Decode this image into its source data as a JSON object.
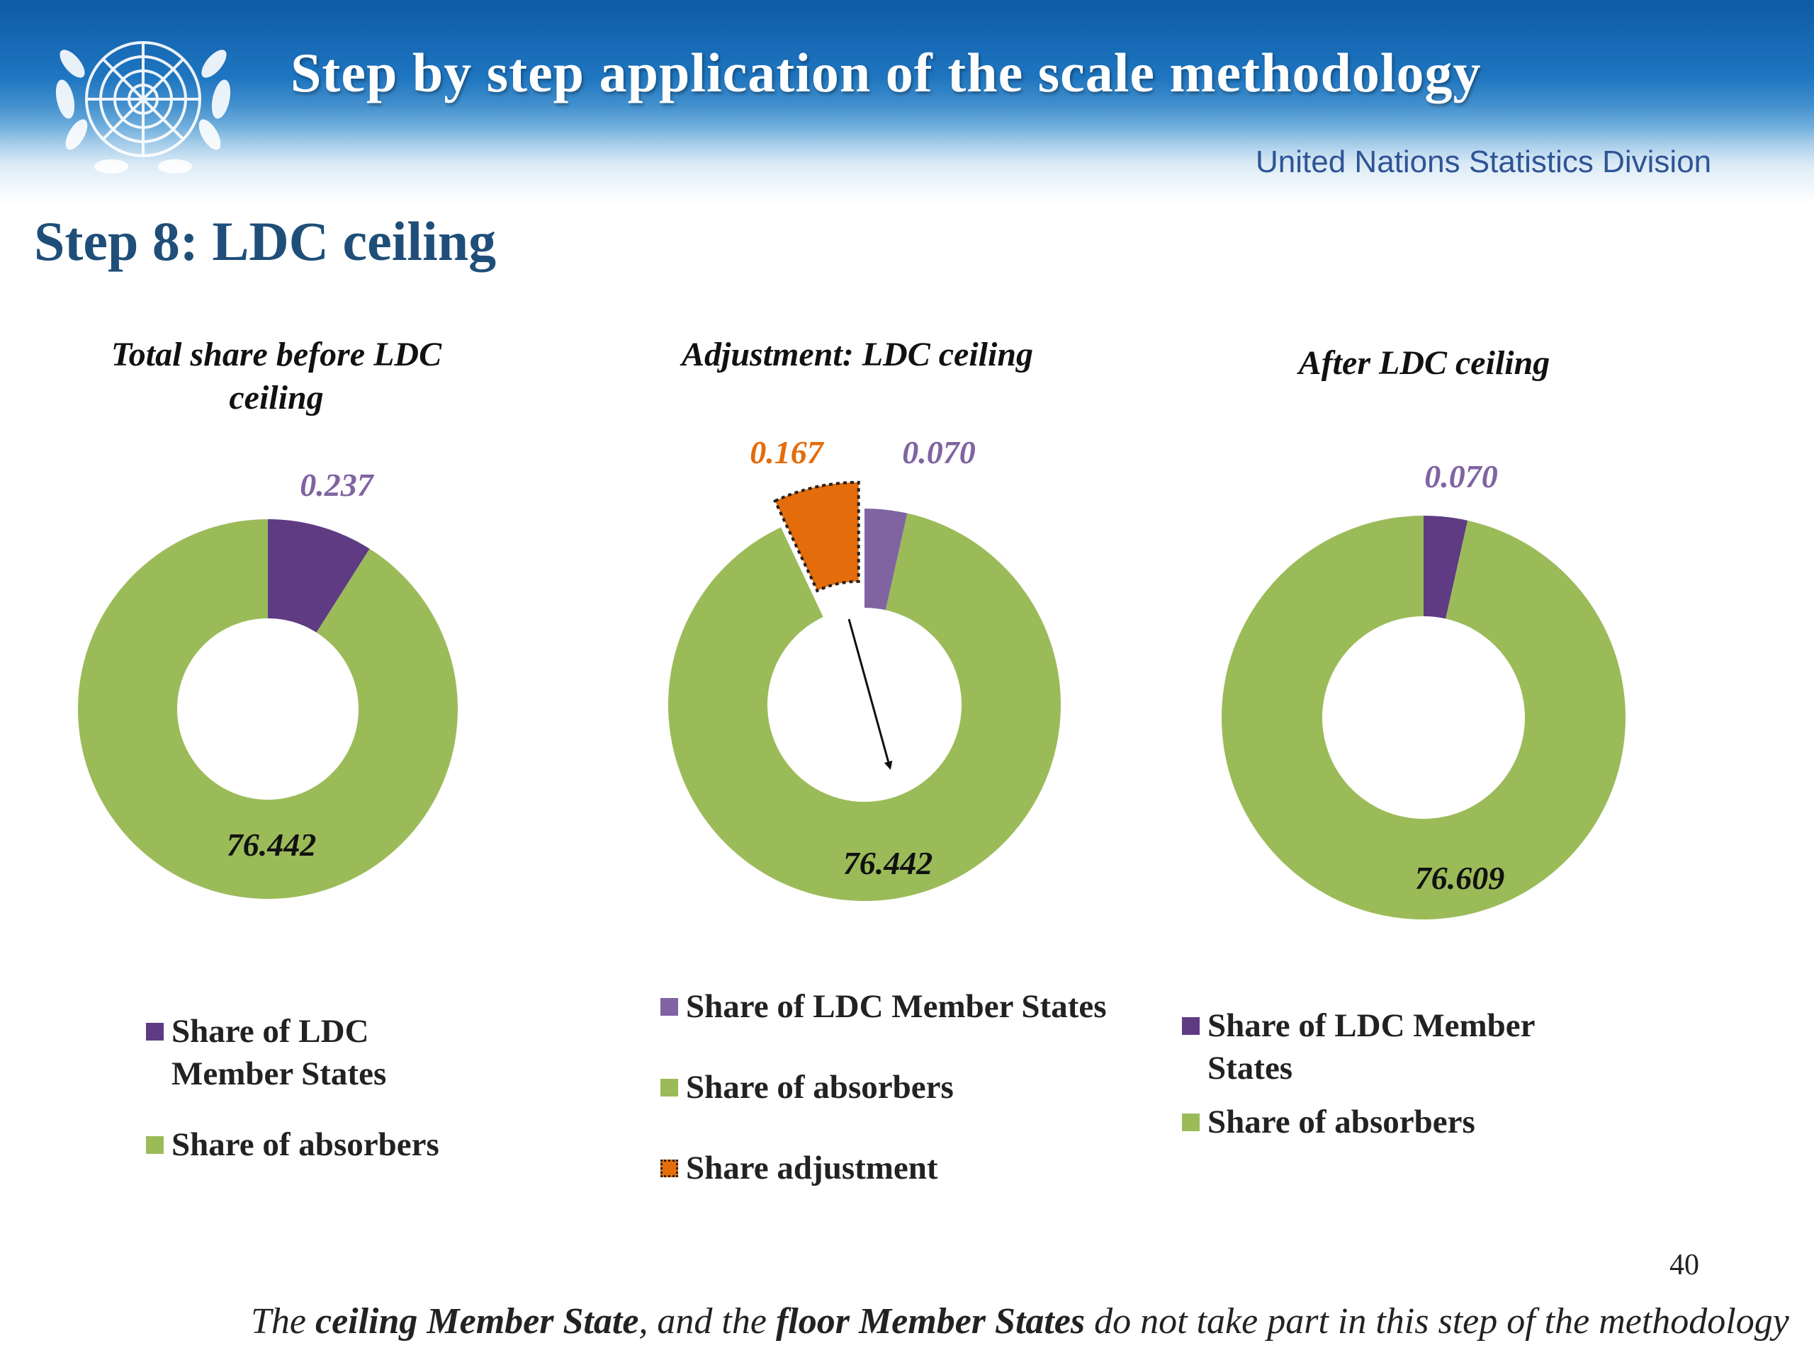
{
  "banner": {
    "title": "Step by step application of the scale methodology",
    "organization": "United Nations Statistics Division",
    "logo_icon": "un-emblem-icon"
  },
  "slide": {
    "heading": "Step 8: LDC ceiling",
    "page_number": "40",
    "footnote": {
      "part1": "The ",
      "part2": "ceiling Member State",
      "part3": ", and the ",
      "part4": "floor Member States",
      "part5": " do not take part in this step of  the methodology"
    }
  },
  "chart_data": [
    {
      "type": "donut",
      "title": "Total share before LDC ceiling",
      "title_lines": [
        "Total share before LDC",
        "ceiling"
      ],
      "series": [
        {
          "name": "Share of LDC Member States",
          "value": 0.237,
          "label": "0.237",
          "color": "#5f3b84",
          "legend_lines": [
            "Share of LDC",
            "Member States"
          ]
        },
        {
          "name": "Share of absorbers",
          "value": 76.442,
          "label": "76.442",
          "color": "#9bbb59",
          "legend_lines": [
            "Share of absorbers"
          ]
        }
      ]
    },
    {
      "type": "donut",
      "title": "Adjustment: LDC ceiling",
      "title_lines": [
        "Adjustment: LDC ceiling"
      ],
      "series": [
        {
          "name": "Share of LDC Member States",
          "value": 0.07,
          "label": "0.070",
          "color": "#8064a2",
          "legend_lines": [
            "Share of LDC Member States"
          ]
        },
        {
          "name": "Share of absorbers",
          "value": 76.442,
          "label": "76.442",
          "color": "#9bbb59",
          "legend_lines": [
            "Share of absorbers"
          ]
        },
        {
          "name": "Share adjustment",
          "value": 0.167,
          "label": "0.167",
          "color": "#e46c0a",
          "legend_lines": [
            "Share adjustment"
          ]
        }
      ]
    },
    {
      "type": "donut",
      "title": "After LDC ceiling",
      "title_lines": [
        "After LDC ceiling"
      ],
      "series": [
        {
          "name": "Share of LDC Member States",
          "value": 0.07,
          "label": "0.070",
          "color": "#5f3b84",
          "legend_lines": [
            "Share of LDC Member",
            "States"
          ]
        },
        {
          "name": "Share of absorbers",
          "value": 76.609,
          "label": "76.609",
          "color": "#9bbb59",
          "legend_lines": [
            "Share of absorbers"
          ]
        }
      ]
    }
  ]
}
